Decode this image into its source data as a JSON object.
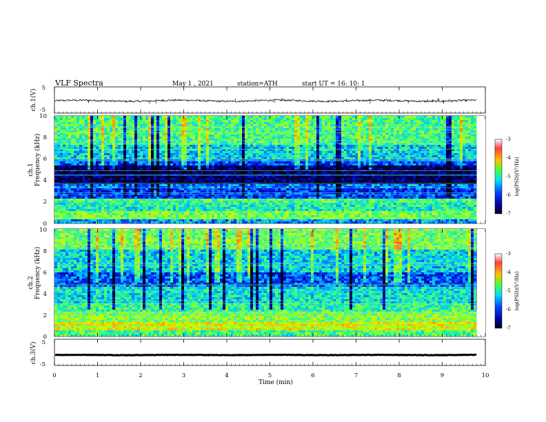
{
  "header": {
    "title": "VLF  Spectra",
    "date": "May 1  , 2021",
    "station": "station=ATH",
    "start": "start  UT  =   16: 10: 1"
  },
  "chart_data": [
    {
      "type": "line",
      "name": "ch1-waveform",
      "ylabel": "ch.1(V)",
      "yticks": [
        "5",
        "-5"
      ],
      "ylim": [
        -5,
        5
      ],
      "xlim": [
        0,
        10
      ],
      "xmax_data": 9.8,
      "baseline": -0.3,
      "noise_amplitude": 0.35
    },
    {
      "type": "heatmap",
      "name": "ch1-spectrogram",
      "ylabel_top": "ch.1",
      "ylabel": "Frequency  (kHz)",
      "yticks": [
        "0",
        "2",
        "4",
        "6",
        "8",
        "10"
      ],
      "ylim": [
        0,
        10
      ],
      "xlim": [
        0,
        10
      ],
      "xmax_data": 9.8,
      "bands": [
        {
          "f0": 0.0,
          "f1": 0.4,
          "level": -5.8
        },
        {
          "f0": 0.4,
          "f1": 1.2,
          "level": -5.0
        },
        {
          "f0": 1.2,
          "f1": 2.0,
          "level": -5.4
        },
        {
          "f0": 2.0,
          "f1": 2.4,
          "level": -5.2
        },
        {
          "f0": 2.4,
          "f1": 3.3,
          "level": -6.2
        },
        {
          "f0": 3.3,
          "f1": 3.7,
          "level": -5.9
        },
        {
          "f0": 3.7,
          "f1": 5.3,
          "level": -6.8
        },
        {
          "f0": 5.3,
          "f1": 6.0,
          "level": -6.1
        },
        {
          "f0": 6.0,
          "f1": 7.3,
          "level": -5.6
        },
        {
          "f0": 7.3,
          "f1": 10.0,
          "level": -5.2
        }
      ],
      "colorbar": {
        "label": "log(PSD)(V²/Hz)",
        "ticks": [
          "-3",
          "-4",
          "-5",
          "-6",
          "-7"
        ],
        "range": [
          -7,
          -3
        ]
      }
    },
    {
      "type": "heatmap",
      "name": "ch2-spectrogram",
      "ylabel_top": "ch.2",
      "ylabel": "Frequency  (kHz)",
      "yticks": [
        "0",
        "2",
        "4",
        "6",
        "8",
        "10"
      ],
      "ylim": [
        0,
        10
      ],
      "xlim": [
        0,
        10
      ],
      "xmax_data": 9.8,
      "bands": [
        {
          "f0": 0.0,
          "f1": 0.5,
          "level": -5.2
        },
        {
          "f0": 0.5,
          "f1": 1.3,
          "level": -4.6
        },
        {
          "f0": 1.3,
          "f1": 2.3,
          "level": -4.9
        },
        {
          "f0": 2.3,
          "f1": 3.0,
          "level": -5.3
        },
        {
          "f0": 3.0,
          "f1": 4.6,
          "level": -5.5
        },
        {
          "f0": 4.6,
          "f1": 6.0,
          "level": -6.1
        },
        {
          "f0": 6.0,
          "f1": 8.0,
          "level": -5.6
        },
        {
          "f0": 8.0,
          "f1": 10.0,
          "level": -5.0
        }
      ],
      "colorbar": {
        "label": "log(PSD)(V²/Hz)",
        "ticks": [
          "-3",
          "-4",
          "-5",
          "-6",
          "-7"
        ],
        "range": [
          -7,
          -3
        ]
      }
    },
    {
      "type": "line",
      "name": "ch3-waveform",
      "ylabel": "ch.3(V)",
      "yticks": [
        "5",
        "-5"
      ],
      "ylim": [
        -5,
        5
      ],
      "xlim": [
        0,
        10
      ],
      "xmax_data": 9.8,
      "baseline": -1.0,
      "noise_amplitude": 0.08
    }
  ],
  "xaxis": {
    "label": "Time  (min)",
    "ticks": [
      "0",
      "1",
      "2",
      "3",
      "4",
      "5",
      "6",
      "7",
      "8",
      "9",
      "10"
    ]
  },
  "colorbar_colors": [
    "#ffffff",
    "#ff3030",
    "#ffff00",
    "#00ff60",
    "#00d0ff",
    "#0000ff",
    "#000060"
  ]
}
